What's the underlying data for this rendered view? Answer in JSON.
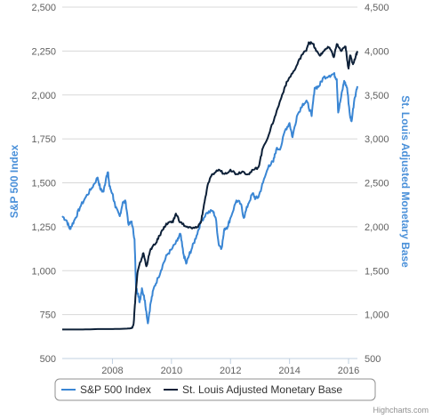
{
  "chart_data": {
    "type": "line",
    "title": "",
    "xlabel": "",
    "x_ticks": [
      "2008",
      "2010",
      "2012",
      "2014",
      "2016"
    ],
    "x_range": [
      2006.3,
      2016.3
    ],
    "left_axis": {
      "label": "S&P 500 Index",
      "range": [
        500,
        2500
      ],
      "ticks": [
        "500",
        "750",
        "1,000",
        "1,250",
        "1,500",
        "1,750",
        "2,000",
        "2,250",
        "2,500"
      ],
      "color": "#4a90d9"
    },
    "right_axis": {
      "label": "St. Louis Adjusted Monetary Base",
      "range": [
        500,
        4500
      ],
      "ticks": [
        "500",
        "1,000",
        "1,500",
        "2,000",
        "2,500",
        "3,000",
        "3,500",
        "4,000",
        "4,500"
      ],
      "color": "#4a90d9"
    },
    "grid": true,
    "legend_position": "bottom",
    "series": [
      {
        "name": "S&P 500 Index",
        "axis": "left",
        "color": "#3a86d4",
        "points": [
          [
            2006.3,
            1310
          ],
          [
            2006.45,
            1285
          ],
          [
            2006.55,
            1240
          ],
          [
            2006.6,
            1250
          ],
          [
            2006.75,
            1300
          ],
          [
            2006.9,
            1360
          ],
          [
            2007.1,
            1420
          ],
          [
            2007.3,
            1470
          ],
          [
            2007.5,
            1530
          ],
          [
            2007.6,
            1460
          ],
          [
            2007.7,
            1450
          ],
          [
            2007.8,
            1540
          ],
          [
            2007.85,
            1560
          ],
          [
            2007.9,
            1480
          ],
          [
            2008.0,
            1440
          ],
          [
            2008.1,
            1360
          ],
          [
            2008.25,
            1310
          ],
          [
            2008.35,
            1390
          ],
          [
            2008.45,
            1390
          ],
          [
            2008.55,
            1260
          ],
          [
            2008.65,
            1280
          ],
          [
            2008.75,
            1180
          ],
          [
            2008.8,
            900
          ],
          [
            2008.87,
            870
          ],
          [
            2008.92,
            820
          ],
          [
            2009.0,
            900
          ],
          [
            2009.1,
            830
          ],
          [
            2009.2,
            700
          ],
          [
            2009.3,
            820
          ],
          [
            2009.4,
            900
          ],
          [
            2009.55,
            960
          ],
          [
            2009.7,
            1030
          ],
          [
            2009.85,
            1090
          ],
          [
            2010.0,
            1120
          ],
          [
            2010.2,
            1170
          ],
          [
            2010.3,
            1210
          ],
          [
            2010.4,
            1100
          ],
          [
            2010.5,
            1040
          ],
          [
            2010.6,
            1090
          ],
          [
            2010.7,
            1130
          ],
          [
            2010.85,
            1200
          ],
          [
            2011.0,
            1280
          ],
          [
            2011.2,
            1330
          ],
          [
            2011.4,
            1340
          ],
          [
            2011.5,
            1300
          ],
          [
            2011.6,
            1150
          ],
          [
            2011.7,
            1130
          ],
          [
            2011.8,
            1240
          ],
          [
            2011.9,
            1250
          ],
          [
            2012.0,
            1300
          ],
          [
            2012.2,
            1400
          ],
          [
            2012.35,
            1380
          ],
          [
            2012.45,
            1300
          ],
          [
            2012.6,
            1380
          ],
          [
            2012.75,
            1440
          ],
          [
            2012.85,
            1410
          ],
          [
            2012.95,
            1420
          ],
          [
            2013.1,
            1500
          ],
          [
            2013.3,
            1600
          ],
          [
            2013.45,
            1620
          ],
          [
            2013.55,
            1690
          ],
          [
            2013.7,
            1700
          ],
          [
            2013.85,
            1800
          ],
          [
            2014.0,
            1840
          ],
          [
            2014.1,
            1760
          ],
          [
            2014.25,
            1880
          ],
          [
            2014.45,
            1950
          ],
          [
            2014.6,
            1960
          ],
          [
            2014.75,
            1880
          ],
          [
            2014.85,
            2040
          ],
          [
            2015.0,
            2050
          ],
          [
            2015.15,
            2100
          ],
          [
            2015.35,
            2110
          ],
          [
            2015.5,
            2120
          ],
          [
            2015.6,
            2090
          ],
          [
            2015.65,
            1900
          ],
          [
            2015.75,
            1990
          ],
          [
            2015.85,
            2080
          ],
          [
            2015.95,
            2040
          ],
          [
            2016.05,
            1880
          ],
          [
            2016.1,
            1850
          ],
          [
            2016.2,
            1980
          ],
          [
            2016.3,
            2050
          ]
        ]
      },
      {
        "name": "St. Louis Adjusted Monetary Base",
        "axis": "right",
        "color": "#0d2038",
        "points": [
          [
            2006.3,
            830
          ],
          [
            2007.0,
            830
          ],
          [
            2007.5,
            835
          ],
          [
            2008.0,
            835
          ],
          [
            2008.5,
            840
          ],
          [
            2008.65,
            845
          ],
          [
            2008.72,
            900
          ],
          [
            2008.78,
            1200
          ],
          [
            2008.85,
            1480
          ],
          [
            2008.95,
            1600
          ],
          [
            2009.05,
            1700
          ],
          [
            2009.15,
            1550
          ],
          [
            2009.3,
            1750
          ],
          [
            2009.45,
            1800
          ],
          [
            2009.6,
            1900
          ],
          [
            2009.75,
            2000
          ],
          [
            2009.9,
            2050
          ],
          [
            2010.05,
            2050
          ],
          [
            2010.15,
            2150
          ],
          [
            2010.3,
            2050
          ],
          [
            2010.5,
            2000
          ],
          [
            2010.7,
            1980
          ],
          [
            2010.85,
            1990
          ],
          [
            2011.0,
            2050
          ],
          [
            2011.1,
            2250
          ],
          [
            2011.25,
            2500
          ],
          [
            2011.4,
            2600
          ],
          [
            2011.6,
            2650
          ],
          [
            2011.8,
            2600
          ],
          [
            2012.0,
            2650
          ],
          [
            2012.2,
            2600
          ],
          [
            2012.4,
            2630
          ],
          [
            2012.6,
            2600
          ],
          [
            2012.8,
            2650
          ],
          [
            2012.95,
            2680
          ],
          [
            2013.1,
            2900
          ],
          [
            2013.3,
            3050
          ],
          [
            2013.5,
            3250
          ],
          [
            2013.7,
            3450
          ],
          [
            2013.85,
            3600
          ],
          [
            2014.0,
            3700
          ],
          [
            2014.2,
            3800
          ],
          [
            2014.4,
            3950
          ],
          [
            2014.55,
            4000
          ],
          [
            2014.65,
            4100
          ],
          [
            2014.8,
            4080
          ],
          [
            2014.9,
            4000
          ],
          [
            2015.05,
            3950
          ],
          [
            2015.2,
            4020
          ],
          [
            2015.35,
            4040
          ],
          [
            2015.5,
            3930
          ],
          [
            2015.6,
            4080
          ],
          [
            2015.75,
            4000
          ],
          [
            2015.9,
            4050
          ],
          [
            2015.95,
            3900
          ],
          [
            2016.0,
            3800
          ],
          [
            2016.05,
            3950
          ],
          [
            2016.15,
            3850
          ],
          [
            2016.25,
            3950
          ],
          [
            2016.3,
            4000
          ]
        ]
      }
    ]
  },
  "credit": "Highcharts.com"
}
